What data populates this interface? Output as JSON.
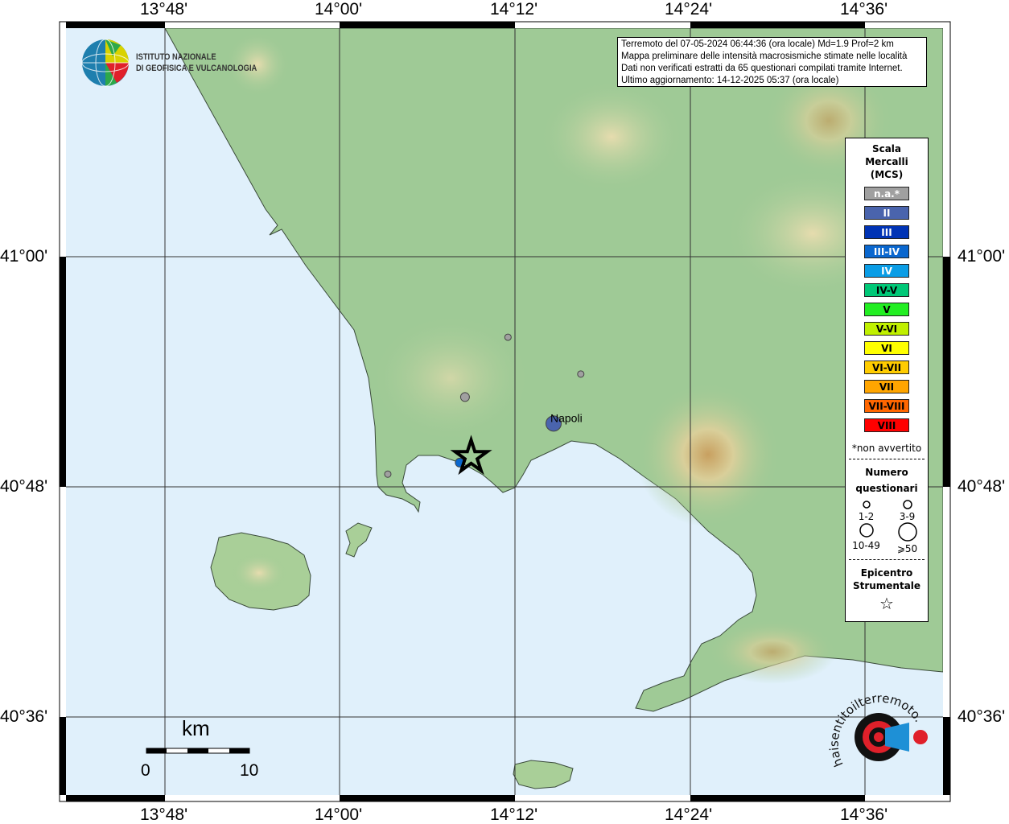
{
  "map": {
    "axes": {
      "lon_ticks": [
        "13°48'",
        "14°00'",
        "14°12'",
        "14°24'",
        "14°36'"
      ],
      "lat_ticks": [
        "41°00'",
        "40°48'",
        "40°36'"
      ]
    },
    "info_box": {
      "line1": "Terremoto del 07-05-2024 06:44:36 (ora locale) Md=1.9 Prof=2 km",
      "line2": "Mappa preliminare delle intensità macrosismiche stimate nelle località",
      "line3": "Dati non verificati estratti da 65 questionari compilati tramite Internet.",
      "line4": "Ultimo aggiornamento: 14-12-2025 05:37 (ora locale)"
    },
    "logo": {
      "line1": "ISTITUTO NAZIONALE",
      "line2": "DI GEOFISICA E VULCANOLOGIA"
    },
    "site_logo": "www.haisentitoilterremoto.it",
    "city_label": "Napoli",
    "scale_bar": {
      "unit": "km",
      "start": "0",
      "end": "10"
    },
    "epicenter": {
      "lon": 14.15,
      "lat": 40.826
    },
    "points": [
      {
        "lon": 14.192,
        "lat": 40.93,
        "intensity": "n.a.",
        "count": "1-2"
      },
      {
        "lon": 14.275,
        "lat": 40.898,
        "intensity": "n.a.",
        "count": "1-2"
      },
      {
        "lon": 14.055,
        "lat": 40.811,
        "intensity": "n.a.",
        "count": "1-2"
      },
      {
        "lon": 14.143,
        "lat": 40.878,
        "intensity": "n.a.",
        "count": "3-9"
      },
      {
        "lon": 14.244,
        "lat": 40.855,
        "intensity": "II",
        "count": "10-49"
      },
      {
        "lon": 14.137,
        "lat": 40.821,
        "intensity": "III-IV",
        "count": "3-9"
      }
    ]
  },
  "legend": {
    "title_1": "Scala",
    "title_2": "Mercalli",
    "title_3": "(MCS)",
    "scale": [
      {
        "label": "n.a.*",
        "color": "#a0a0a0",
        "text": "#ffffff"
      },
      {
        "label": "II",
        "color": "#4a64ad",
        "text": "#ffffff"
      },
      {
        "label": "III",
        "color": "#0033b5",
        "text": "#ffffff"
      },
      {
        "label": "III-IV",
        "color": "#0a67cf",
        "text": "#ffffff"
      },
      {
        "label": "IV",
        "color": "#0a9de6",
        "text": "#ffffff"
      },
      {
        "label": "IV-V",
        "color": "#00c877",
        "text": "#000000"
      },
      {
        "label": "V",
        "color": "#22ee22",
        "text": "#000000"
      },
      {
        "label": "V-VI",
        "color": "#c0f000",
        "text": "#000000"
      },
      {
        "label": "VI",
        "color": "#ffff00",
        "text": "#000000"
      },
      {
        "label": "VI-VII",
        "color": "#ffcc00",
        "text": "#000000"
      },
      {
        "label": "VII",
        "color": "#ffa500",
        "text": "#000000"
      },
      {
        "label": "VII-VIII",
        "color": "#ff6600",
        "text": "#000000"
      },
      {
        "label": "VIII",
        "color": "#ff0000",
        "text": "#000000"
      }
    ],
    "note": "*non avvertito",
    "count_title_1": "Numero",
    "count_title_2": "questionari",
    "counts": [
      "1-2",
      "3-9",
      "10-49",
      "⩾50"
    ],
    "epicenter_title_1": "Epicentro",
    "epicenter_title_2": "Strumentale"
  }
}
